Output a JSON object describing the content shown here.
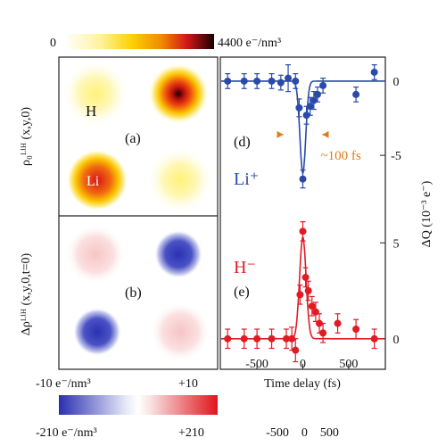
{
  "colorbar_top": {
    "min_label": "0",
    "max_label": "4400 e⁻/nm³"
  },
  "colorbar_bottom": {
    "top_left_label": "-10 e⁻/nm³",
    "top_right_label": "+10",
    "bottom_left_label": "-210 e⁻/nm³",
    "bottom_right_label": "+210"
  },
  "map_panels": {
    "panel_a": {
      "tag": "(a)",
      "label_h": "H",
      "label_li": "Li",
      "ylabel": "ρ₀ᴸⁱᴴ (x,y,0)"
    },
    "panel_b": {
      "tag": "(b)",
      "ylabel": "Δρᴸⁱᴴ (x,y,0,t=0)"
    }
  },
  "chart_data": {
    "type": "scatter",
    "xlabel": "Time delay (fs)",
    "ylabel": "ΔQ (10⁻³ e⁻)",
    "xlim": [
      -900,
      900
    ],
    "xticks": [
      -500,
      0,
      500
    ],
    "xtick_labels": [
      "-500",
      "0",
      "500"
    ],
    "bottom_ticks_text": "-500    0    500",
    "panels": [
      {
        "tag": "(d)",
        "species": "Li⁺",
        "color": "#2a4aaa",
        "ylim": [
          -8,
          1.5
        ],
        "yticks": [
          0,
          -5
        ],
        "ytick_labels": [
          "0",
          "-5"
        ],
        "annotation": "~100 fs",
        "annotation_color": "#e07a1a",
        "points": [
          {
            "x": -820,
            "y": 0.0,
            "err": 0.5
          },
          {
            "x": -640,
            "y": 0.0,
            "err": 0.5
          },
          {
            "x": -500,
            "y": 0.0,
            "err": 0.5
          },
          {
            "x": -340,
            "y": 0.0,
            "err": 0.5
          },
          {
            "x": -240,
            "y": -0.1,
            "err": 0.5
          },
          {
            "x": -160,
            "y": 0.2,
            "err": 0.9
          },
          {
            "x": -80,
            "y": 0.0,
            "err": 0.5
          },
          {
            "x": -40,
            "y": -1.8,
            "err": 0.6
          },
          {
            "x": 0,
            "y": -6.6,
            "err": 0.6
          },
          {
            "x": 40,
            "y": -2.3,
            "err": 0.6
          },
          {
            "x": 80,
            "y": -1.7,
            "err": 0.6
          },
          {
            "x": 120,
            "y": -1.3,
            "err": 0.6
          },
          {
            "x": 160,
            "y": -0.9,
            "err": 0.5
          },
          {
            "x": 220,
            "y": -0.3,
            "err": 0.5
          },
          {
            "x": 580,
            "y": -0.9,
            "err": 0.5
          },
          {
            "x": 780,
            "y": 0.6,
            "err": 0.5
          }
        ],
        "fit": {
          "baseline": 0.0,
          "amplitude": -6.2,
          "center": 0,
          "width": 45
        }
      },
      {
        "tag": "(e)",
        "species": "H⁻",
        "color": "#e01b24",
        "ylim": [
          -1.5,
          6.5
        ],
        "yticks": [
          5,
          0
        ],
        "ytick_labels": [
          "5",
          "0"
        ],
        "points": [
          {
            "x": -820,
            "y": 0.0,
            "err": 0.5
          },
          {
            "x": -640,
            "y": 0.0,
            "err": 0.5
          },
          {
            "x": -500,
            "y": 0.0,
            "err": 0.5
          },
          {
            "x": -340,
            "y": 0.0,
            "err": 0.5
          },
          {
            "x": -180,
            "y": 0.0,
            "err": 0.5
          },
          {
            "x": -120,
            "y": 0.0,
            "err": 0.6
          },
          {
            "x": -80,
            "y": -0.6,
            "err": 0.6
          },
          {
            "x": -30,
            "y": 2.3,
            "err": 0.5
          },
          {
            "x": 0,
            "y": 5.6,
            "err": 0.5
          },
          {
            "x": 30,
            "y": 3.2,
            "err": 0.5
          },
          {
            "x": 60,
            "y": 2.5,
            "err": 0.5
          },
          {
            "x": 100,
            "y": 1.7,
            "err": 0.5
          },
          {
            "x": 140,
            "y": 1.4,
            "err": 0.5
          },
          {
            "x": 180,
            "y": 0.8,
            "err": 0.5
          },
          {
            "x": 220,
            "y": 0.3,
            "err": 0.5
          },
          {
            "x": 380,
            "y": 0.8,
            "err": 0.5
          },
          {
            "x": 580,
            "y": 0.5,
            "err": 0.5
          },
          {
            "x": 780,
            "y": 0.0,
            "err": 0.5
          }
        ],
        "fit": {
          "baseline": 0.0,
          "amplitude": 5.3,
          "center": 0,
          "width": 50
        }
      }
    ]
  }
}
